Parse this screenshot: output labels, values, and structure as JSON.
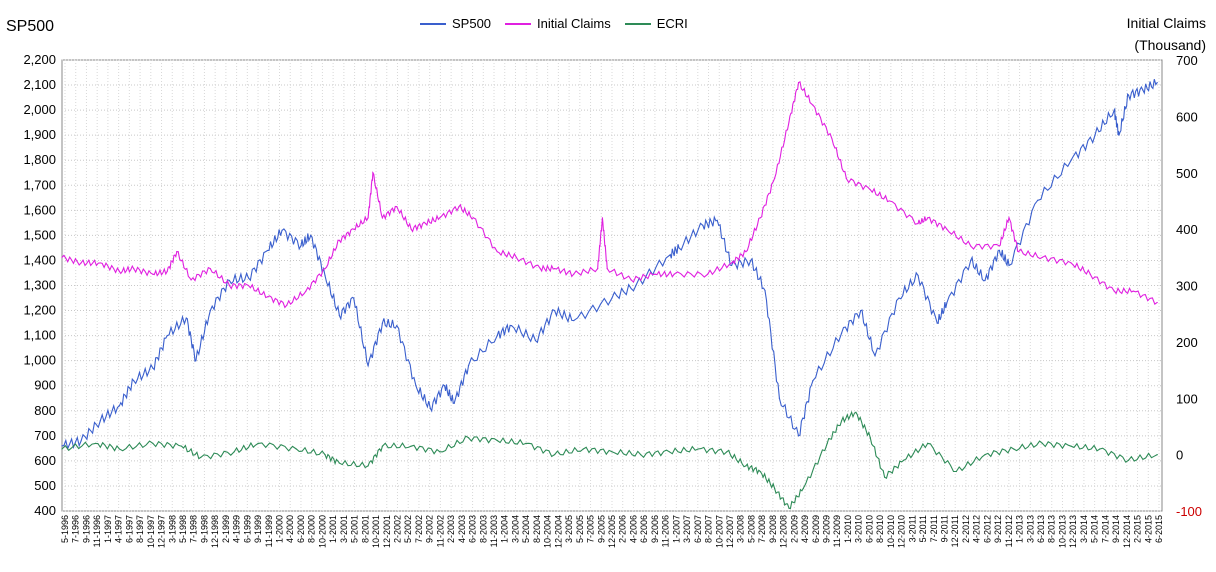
{
  "chart_data": {
    "type": "line",
    "title": "",
    "left_axis_label": "SP500",
    "right_axis_label_line1": "Initial Claims",
    "right_axis_label_line2": "(Thousand)",
    "ylim_left": [
      400,
      2200
    ],
    "ylim_right": [
      -100,
      700
    ],
    "yticks_left": [
      "400",
      "500",
      "600",
      "700",
      "800",
      "900",
      "1,000",
      "1,100",
      "1,200",
      "1,300",
      "1,400",
      "1,500",
      "1,600",
      "1,700",
      "1,800",
      "1,900",
      "2,000",
      "2,100",
      "2,200"
    ],
    "yticks_right": [
      "-100",
      "0",
      "100",
      "200",
      "300",
      "400",
      "500",
      "600",
      "700"
    ],
    "grid": true,
    "legend_position": "top",
    "colors": {
      "SP500": "#3a5fcd",
      "Initial Claims": "#e020e0",
      "ECRI": "#2e8b57",
      "negative_tick": "#cc0000"
    },
    "x_labels": [
      "5-1996",
      "7-1996",
      "9-1996",
      "11-1996",
      "1-1997",
      "4-1997",
      "6-1997",
      "8-1997",
      "10-1997",
      "12-1997",
      "3-1998",
      "5-1998",
      "7-1998",
      "9-1998",
      "12-1998",
      "2-1999",
      "4-1999",
      "6-1999",
      "9-1999",
      "11-1999",
      "1-2000",
      "4-2000",
      "6-2000",
      "8-2000",
      "10-2000",
      "1-2001",
      "3-2001",
      "5-2001",
      "8-2001",
      "10-2001",
      "12-2001",
      "2-2002",
      "5-2002",
      "7-2002",
      "9-2002",
      "11-2002",
      "2-2003",
      "4-2003",
      "6-2003",
      "8-2003",
      "11-2003",
      "1-2004",
      "3-2004",
      "5-2004",
      "8-2004",
      "10-2004",
      "12-2004",
      "3-2005",
      "5-2005",
      "7-2005",
      "9-2005",
      "12-2005",
      "2-2006",
      "4-2006",
      "6-2006",
      "9-2006",
      "11-2006",
      "1-2007",
      "3-2007",
      "6-2007",
      "8-2007",
      "10-2007",
      "12-2007",
      "3-2008",
      "5-2008",
      "7-2008",
      "9-2008",
      "12-2008",
      "2-2009",
      "4-2009",
      "6-2009",
      "9-2009",
      "11-2009",
      "1-2010",
      "3-2010",
      "6-2010",
      "8-2010",
      "10-2010",
      "12-2010",
      "3-2011",
      "5-2011",
      "7-2011",
      "9-2011",
      "12-2011",
      "2-2012",
      "4-2012",
      "6-2012",
      "9-2012",
      "11-2012",
      "1-2013",
      "3-2013",
      "6-2013",
      "8-2013",
      "10-2013",
      "12-2013",
      "3-2014",
      "5-2014",
      "7-2014",
      "9-2014",
      "12-2014",
      "2-2015",
      "4-2015",
      "6-2015"
    ],
    "series": [
      {
        "name": "SP500",
        "axis": "left",
        "points": [
          [
            "1996-05",
            660
          ],
          [
            "1996-09",
            680
          ],
          [
            "1997-01",
            760
          ],
          [
            "1997-05",
            820
          ],
          [
            "1997-08",
            920
          ],
          [
            "1997-12",
            970
          ],
          [
            "1998-03",
            1100
          ],
          [
            "1998-07",
            1170
          ],
          [
            "1998-09",
            1000
          ],
          [
            "1998-12",
            1200
          ],
          [
            "1999-04",
            1320
          ],
          [
            "1999-08",
            1330
          ],
          [
            "1999-12",
            1440
          ],
          [
            "2000-03",
            1520
          ],
          [
            "2000-07",
            1460
          ],
          [
            "2000-09",
            1500
          ],
          [
            "2000-12",
            1340
          ],
          [
            "2001-03",
            1180
          ],
          [
            "2001-06",
            1250
          ],
          [
            "2001-09",
            980
          ],
          [
            "2001-12",
            1150
          ],
          [
            "2002-03",
            1140
          ],
          [
            "2002-07",
            900
          ],
          [
            "2002-10",
            810
          ],
          [
            "2003-01",
            900
          ],
          [
            "2003-03",
            830
          ],
          [
            "2003-06",
            980
          ],
          [
            "2003-12",
            1100
          ],
          [
            "2004-03",
            1140
          ],
          [
            "2004-08",
            1080
          ],
          [
            "2004-12",
            1200
          ],
          [
            "2005-04",
            1160
          ],
          [
            "2005-12",
            1250
          ],
          [
            "2006-05",
            1300
          ],
          [
            "2006-12",
            1420
          ],
          [
            "2007-02",
            1450
          ],
          [
            "2007-07",
            1540
          ],
          [
            "2007-10",
            1560
          ],
          [
            "2008-01",
            1380
          ],
          [
            "2008-05",
            1400
          ],
          [
            "2008-08",
            1280
          ],
          [
            "2008-11",
            850
          ],
          [
            "2009-03",
            700
          ],
          [
            "2009-06",
            920
          ],
          [
            "2009-12",
            1110
          ],
          [
            "2010-04",
            1200
          ],
          [
            "2010-07",
            1020
          ],
          [
            "2010-12",
            1250
          ],
          [
            "2011-04",
            1340
          ],
          [
            "2011-08",
            1150
          ],
          [
            "2011-10",
            1230
          ],
          [
            "2012-03",
            1400
          ],
          [
            "2012-06",
            1320
          ],
          [
            "2012-09",
            1440
          ],
          [
            "2012-11",
            1380
          ],
          [
            "2013-05",
            1640
          ],
          [
            "2013-12",
            1800
          ],
          [
            "2014-05",
            1900
          ],
          [
            "2014-09",
            2000
          ],
          [
            "2014-10",
            1900
          ],
          [
            "2014-12",
            2060
          ],
          [
            "2015-03",
            2080
          ],
          [
            "2015-06",
            2110
          ]
        ]
      },
      {
        "name": "Initial Claims",
        "axis": "right",
        "points": [
          [
            "1996-05",
            350
          ],
          [
            "1996-09",
            340
          ],
          [
            "1997-01",
            340
          ],
          [
            "1997-05",
            325
          ],
          [
            "1997-08",
            330
          ],
          [
            "1997-12",
            320
          ],
          [
            "1998-03",
            325
          ],
          [
            "1998-05",
            360
          ],
          [
            "1998-08",
            310
          ],
          [
            "1998-12",
            330
          ],
          [
            "1999-04",
            300
          ],
          [
            "1999-08",
            300
          ],
          [
            "1999-12",
            280
          ],
          [
            "2000-04",
            265
          ],
          [
            "2000-08",
            290
          ],
          [
            "2000-12",
            330
          ],
          [
            "2001-03",
            380
          ],
          [
            "2001-06",
            400
          ],
          [
            "2001-09",
            420
          ],
          [
            "2001-10",
            500
          ],
          [
            "2001-12",
            420
          ],
          [
            "2002-03",
            440
          ],
          [
            "2002-06",
            400
          ],
          [
            "2002-09",
            410
          ],
          [
            "2002-12",
            420
          ],
          [
            "2003-04",
            440
          ],
          [
            "2003-07",
            420
          ],
          [
            "2003-12",
            360
          ],
          [
            "2004-04",
            350
          ],
          [
            "2004-09",
            330
          ],
          [
            "2004-12",
            330
          ],
          [
            "2005-04",
            320
          ],
          [
            "2005-09",
            330
          ],
          [
            "2005-10",
            420
          ],
          [
            "2005-11",
            330
          ],
          [
            "2006-04",
            310
          ],
          [
            "2006-09",
            320
          ],
          [
            "2007-01",
            320
          ],
          [
            "2007-08",
            320
          ],
          [
            "2008-01",
            340
          ],
          [
            "2008-04",
            360
          ],
          [
            "2008-07",
            420
          ],
          [
            "2008-10",
            490
          ],
          [
            "2009-01",
            590
          ],
          [
            "2009-03",
            660
          ],
          [
            "2009-06",
            620
          ],
          [
            "2009-10",
            560
          ],
          [
            "2010-01",
            490
          ],
          [
            "2010-06",
            470
          ],
          [
            "2010-10",
            450
          ],
          [
            "2011-04",
            410
          ],
          [
            "2011-06",
            420
          ],
          [
            "2011-10",
            400
          ],
          [
            "2012-03",
            370
          ],
          [
            "2012-09",
            370
          ],
          [
            "2012-11",
            420
          ],
          [
            "2013-01",
            360
          ],
          [
            "2013-06",
            350
          ],
          [
            "2013-12",
            340
          ],
          [
            "2014-04",
            320
          ],
          [
            "2014-09",
            290
          ],
          [
            "2015-01",
            290
          ],
          [
            "2015-06",
            270
          ]
        ]
      },
      {
        "name": "ECRI",
        "axis": "right",
        "points": [
          [
            "1996-05",
            10
          ],
          [
            "1996-12",
            20
          ],
          [
            "1997-05",
            10
          ],
          [
            "1997-12",
            20
          ],
          [
            "1998-06",
            15
          ],
          [
            "1998-10",
            -5
          ],
          [
            "1999-05",
            5
          ],
          [
            "1999-10",
            20
          ],
          [
            "2000-06",
            10
          ],
          [
            "2000-12",
            0
          ],
          [
            "2001-03",
            -15
          ],
          [
            "2001-09",
            -20
          ],
          [
            "2001-12",
            15
          ],
          [
            "2002-06",
            15
          ],
          [
            "2002-12",
            5
          ],
          [
            "2003-06",
            30
          ],
          [
            "2003-12",
            25
          ],
          [
            "2004-06",
            20
          ],
          [
            "2004-12",
            0
          ],
          [
            "2005-06",
            10
          ],
          [
            "2005-12",
            5
          ],
          [
            "2006-06",
            0
          ],
          [
            "2006-12",
            5
          ],
          [
            "2007-06",
            10
          ],
          [
            "2007-12",
            5
          ],
          [
            "2008-04",
            -20
          ],
          [
            "2008-07",
            -30
          ],
          [
            "2008-10",
            -60
          ],
          [
            "2009-01",
            -95
          ],
          [
            "2009-04",
            -60
          ],
          [
            "2009-09",
            20
          ],
          [
            "2009-12",
            60
          ],
          [
            "2010-03",
            75
          ],
          [
            "2010-06",
            30
          ],
          [
            "2010-09",
            -40
          ],
          [
            "2011-01",
            -10
          ],
          [
            "2011-06",
            20
          ],
          [
            "2011-12",
            -30
          ],
          [
            "2012-06",
            0
          ],
          [
            "2012-12",
            10
          ],
          [
            "2013-06",
            20
          ],
          [
            "2013-12",
            15
          ],
          [
            "2014-06",
            10
          ],
          [
            "2014-12",
            -10
          ],
          [
            "2015-06",
            0
          ]
        ]
      }
    ]
  }
}
